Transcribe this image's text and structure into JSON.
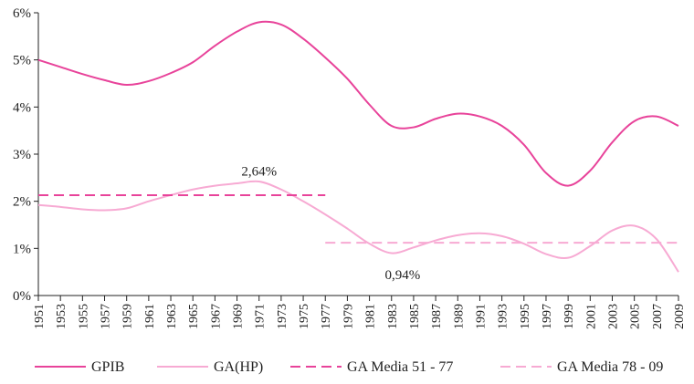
{
  "chart_data": {
    "type": "line",
    "title": "",
    "xlabel": "",
    "ylabel": "",
    "ylim": [
      0,
      6
    ],
    "yticks": [
      "0%",
      "1%",
      "2%",
      "3%",
      "4%",
      "5%",
      "6%"
    ],
    "x_range": [
      1951,
      2009
    ],
    "x_ticks": [
      "1951",
      "1953",
      "1955",
      "1957",
      "1959",
      "1961",
      "1963",
      "1965",
      "1967",
      "1969",
      "1971",
      "1973",
      "1975",
      "1977",
      "1979",
      "1981",
      "1983",
      "1985",
      "1987",
      "1989",
      "1991",
      "1993",
      "1995",
      "1997",
      "1999",
      "2001",
      "2003",
      "2005",
      "2007",
      "2009"
    ],
    "grid": false,
    "legend_position": "bottom",
    "series": [
      {
        "name": "GPIB",
        "color": "#e8439a",
        "style": "solid",
        "points": [
          [
            1951,
            5.0
          ],
          [
            1953,
            4.85
          ],
          [
            1955,
            4.7
          ],
          [
            1957,
            4.57
          ],
          [
            1959,
            4.47
          ],
          [
            1961,
            4.55
          ],
          [
            1963,
            4.72
          ],
          [
            1965,
            4.95
          ],
          [
            1967,
            5.3
          ],
          [
            1969,
            5.6
          ],
          [
            1971,
            5.8
          ],
          [
            1973,
            5.75
          ],
          [
            1975,
            5.45
          ],
          [
            1977,
            5.05
          ],
          [
            1979,
            4.6
          ],
          [
            1981,
            4.05
          ],
          [
            1983,
            3.6
          ],
          [
            1985,
            3.57
          ],
          [
            1987,
            3.75
          ],
          [
            1989,
            3.86
          ],
          [
            1991,
            3.8
          ],
          [
            1993,
            3.6
          ],
          [
            1995,
            3.2
          ],
          [
            1997,
            2.6
          ],
          [
            1999,
            2.33
          ],
          [
            2001,
            2.65
          ],
          [
            2003,
            3.25
          ],
          [
            2005,
            3.7
          ],
          [
            2007,
            3.8
          ],
          [
            2009,
            3.6
          ]
        ]
      },
      {
        "name": "GA(HP)",
        "color": "#f7aad3",
        "style": "solid",
        "points": [
          [
            1951,
            1.92
          ],
          [
            1953,
            1.88
          ],
          [
            1955,
            1.83
          ],
          [
            1957,
            1.81
          ],
          [
            1959,
            1.85
          ],
          [
            1961,
            2.0
          ],
          [
            1963,
            2.13
          ],
          [
            1965,
            2.25
          ],
          [
            1967,
            2.33
          ],
          [
            1969,
            2.38
          ],
          [
            1971,
            2.42
          ],
          [
            1973,
            2.25
          ],
          [
            1975,
            2.0
          ],
          [
            1977,
            1.72
          ],
          [
            1979,
            1.42
          ],
          [
            1981,
            1.1
          ],
          [
            1983,
            0.9
          ],
          [
            1985,
            1.02
          ],
          [
            1987,
            1.17
          ],
          [
            1989,
            1.28
          ],
          [
            1991,
            1.32
          ],
          [
            1993,
            1.26
          ],
          [
            1995,
            1.1
          ],
          [
            1997,
            0.88
          ],
          [
            1999,
            0.8
          ],
          [
            2001,
            1.05
          ],
          [
            2003,
            1.38
          ],
          [
            2005,
            1.48
          ],
          [
            2007,
            1.2
          ],
          [
            2009,
            0.5
          ]
        ]
      },
      {
        "name": "GA Media 51 - 77",
        "color": "#e8439a",
        "style": "dashed",
        "points": [
          [
            1951,
            2.13
          ],
          [
            1977,
            2.13
          ]
        ]
      },
      {
        "name": "GA Media 78 - 09",
        "color": "#f7aad3",
        "style": "dashed",
        "points": [
          [
            1977,
            1.12
          ],
          [
            2009,
            1.12
          ]
        ]
      }
    ],
    "annotations": [
      {
        "text": "2,64%",
        "x": 1971,
        "y": 2.64
      },
      {
        "text": "0,94%",
        "x": 1984,
        "y": 0.45
      }
    ]
  }
}
